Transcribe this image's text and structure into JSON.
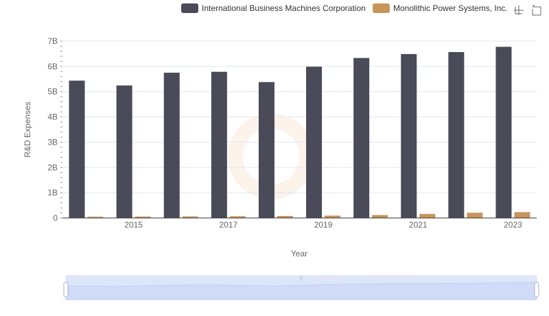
{
  "chart_data": {
    "type": "bar",
    "categories": [
      "2014",
      "2015",
      "2016",
      "2017",
      "2018",
      "2019",
      "2020",
      "2021",
      "2022",
      "2023"
    ],
    "x_tick_labels": [
      "2015",
      "2017",
      "2019",
      "2021",
      "2023"
    ],
    "series": [
      {
        "name": "International Business Machines Corporation",
        "color": "#4a4a58",
        "values": [
          5437000000,
          5247000000,
          5751000000,
          5787000000,
          5379000000,
          5989000000,
          6333000000,
          6488000000,
          6567000000,
          6775000000
        ]
      },
      {
        "name": "Monolithic Power Systems, Inc.",
        "color": "#c8945a",
        "values": [
          50000000,
          56000000,
          62000000,
          70000000,
          80000000,
          95000000,
          116000000,
          160000000,
          209000000,
          232000000
        ]
      }
    ],
    "xlabel": "Year",
    "ylabel": "R&D Expenses",
    "ylim": [
      0,
      7000000000
    ],
    "y_tick_labels": [
      "0",
      "1B",
      "2B",
      "3B",
      "4B",
      "5B",
      "6B",
      "7B"
    ],
    "grid": true,
    "legend_position": "top"
  },
  "toolbox": {
    "icons": [
      "zoom-icon",
      "restore-icon"
    ]
  },
  "data_zoom": {
    "start": 0,
    "end": 100
  }
}
